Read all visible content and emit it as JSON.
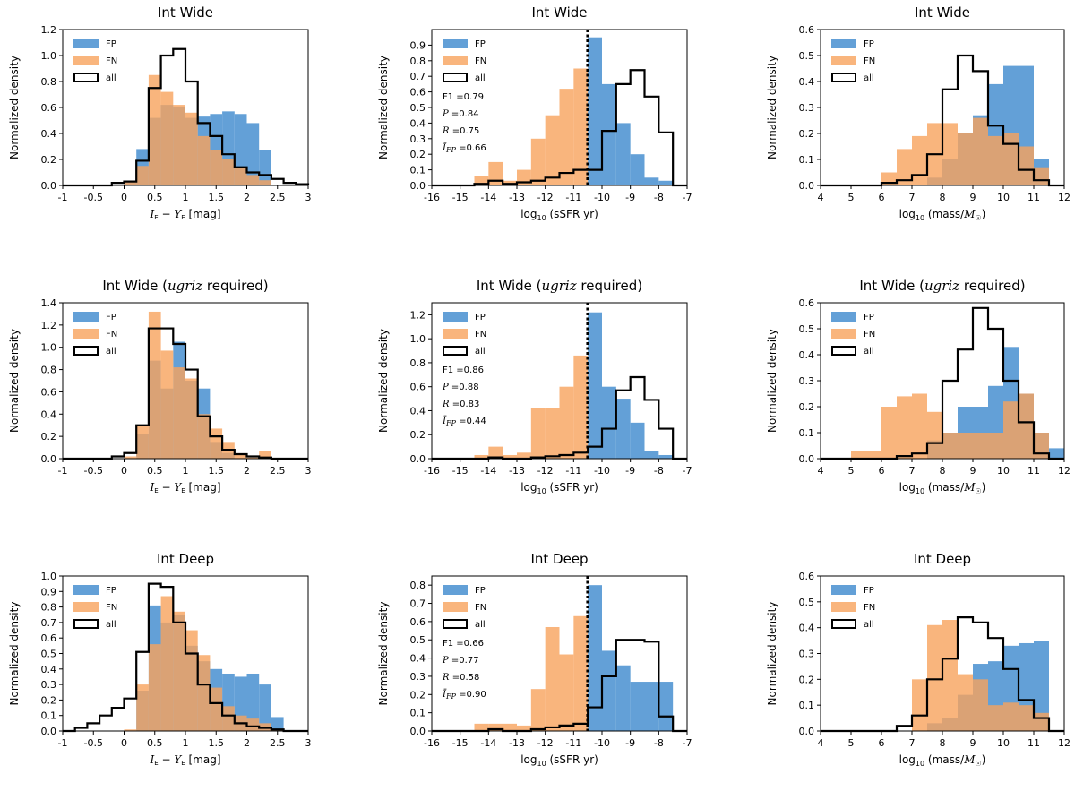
{
  "colors": {
    "FP": "#5b9bd5",
    "FN": "#f7a35c",
    "all": "#000000"
  },
  "legend": [
    "FP",
    "FN",
    "all"
  ],
  "ylabel": "Normalized density",
  "chart_data": [
    {
      "type": "histogram",
      "title": "Int Wide",
      "xlabel": "I_E − Y_E [mag]",
      "xlim": [
        -1,
        3
      ],
      "ylim": [
        0,
        1.2
      ],
      "xticks": [
        "-1",
        "-0.5",
        "0",
        "0.5",
        "1",
        "1.5",
        "2",
        "2.5",
        "3"
      ],
      "yticks": [
        "0.0",
        "0.2",
        "0.4",
        "0.6",
        "0.8",
        "1.0",
        "1.2"
      ],
      "bins": [
        -1.0,
        -0.8,
        -0.6,
        -0.4,
        -0.2,
        0.0,
        0.2,
        0.4,
        0.6,
        0.8,
        1.0,
        1.2,
        1.4,
        1.6,
        1.8,
        2.0,
        2.2,
        2.4,
        2.6,
        2.8,
        3.0
      ],
      "series": [
        {
          "name": "FP",
          "values": [
            0,
            0,
            0,
            0,
            0,
            0.02,
            0.28,
            0.52,
            0.62,
            0.6,
            0.52,
            0.53,
            0.55,
            0.57,
            0.55,
            0.48,
            0.27,
            0,
            0,
            0
          ]
        },
        {
          "name": "FN",
          "values": [
            0,
            0,
            0,
            0,
            0,
            0.03,
            0.15,
            0.85,
            0.72,
            0.62,
            0.56,
            0.38,
            0.27,
            0.2,
            0.14,
            0.08,
            0.04,
            0,
            0,
            0
          ]
        },
        {
          "name": "all",
          "values": [
            0,
            0,
            0,
            0,
            0.02,
            0.03,
            0.19,
            0.75,
            1.0,
            1.05,
            0.8,
            0.48,
            0.38,
            0.24,
            0.14,
            0.1,
            0.08,
            0.05,
            0.02,
            0.01
          ]
        }
      ]
    },
    {
      "type": "histogram",
      "title": "Int Wide",
      "xlabel": "log10 (sSFR yr)",
      "xlim": [
        -16,
        -7
      ],
      "ylim": [
        0,
        1.0
      ],
      "xticks": [
        "-16",
        "-15",
        "-14",
        "-13",
        "-12",
        "-11",
        "-10",
        "-9",
        "-8",
        "-7"
      ],
      "yticks": [
        "0.0",
        "0.1",
        "0.2",
        "0.3",
        "0.4",
        "0.5",
        "0.6",
        "0.7",
        "0.8",
        "0.9"
      ],
      "bins": [
        -16.0,
        -15.5,
        -15.0,
        -14.5,
        -14.0,
        -13.5,
        -13.0,
        -12.5,
        -12.0,
        -11.5,
        -11.0,
        -10.5,
        -10.0,
        -9.5,
        -9.0,
        -8.5,
        -8.0,
        -7.5,
        -7.0
      ],
      "threshold": -10.5,
      "annotations": [
        "F1 = 0.79",
        "P = 0.84",
        "R = 0.75",
        "Ī_FP = 0.66"
      ],
      "series": [
        {
          "name": "FP",
          "values": [
            0,
            0,
            0,
            0,
            0,
            0,
            0,
            0,
            0,
            0,
            0,
            0.95,
            0.65,
            0.4,
            0.2,
            0.05,
            0.03,
            0,
            0
          ]
        },
        {
          "name": "FN",
          "values": [
            0,
            0,
            0,
            0.06,
            0.15,
            0.03,
            0.1,
            0.3,
            0.45,
            0.62,
            0.75,
            0,
            0,
            0,
            0,
            0,
            0,
            0,
            0
          ]
        },
        {
          "name": "all",
          "values": [
            0,
            0,
            0,
            0.01,
            0.03,
            0.01,
            0.02,
            0.03,
            0.05,
            0.08,
            0.1,
            0.1,
            0.35,
            0.65,
            0.74,
            0.57,
            0.34,
            0,
            0
          ]
        }
      ]
    },
    {
      "type": "histogram",
      "title": "Int Wide",
      "xlabel": "log10 (mass/M☉)",
      "xlim": [
        4,
        12
      ],
      "ylim": [
        0,
        0.6
      ],
      "xticks": [
        "4",
        "5",
        "6",
        "7",
        "8",
        "9",
        "10",
        "11",
        "12"
      ],
      "yticks": [
        "0.0",
        "0.1",
        "0.2",
        "0.3",
        "0.4",
        "0.5",
        "0.6"
      ],
      "bins": [
        4.0,
        4.5,
        5.0,
        5.5,
        6.0,
        6.5,
        7.0,
        7.5,
        8.0,
        8.5,
        9.0,
        9.5,
        10.0,
        10.5,
        11.0,
        11.5,
        12.0
      ],
      "series": [
        {
          "name": "FP",
          "values": [
            0,
            0,
            0,
            0,
            0,
            0,
            0,
            0.03,
            0.1,
            0.2,
            0.27,
            0.39,
            0.46,
            0.46,
            0.1,
            0
          ]
        },
        {
          "name": "FN",
          "values": [
            0,
            0,
            0,
            0,
            0.05,
            0.14,
            0.19,
            0.24,
            0.24,
            0.2,
            0.26,
            0.19,
            0.2,
            0.15,
            0.07,
            0
          ]
        },
        {
          "name": "all",
          "values": [
            0,
            0,
            0,
            0,
            0.01,
            0.02,
            0.04,
            0.12,
            0.37,
            0.5,
            0.44,
            0.23,
            0.16,
            0.06,
            0.02,
            0
          ]
        }
      ]
    },
    {
      "type": "histogram",
      "title": "Int Wide (ugriz required)",
      "title_main": "Int Wide (",
      "title_math": "ugriz",
      "title_tail": " required)",
      "xlabel": "I_E − Y_E [mag]",
      "xlim": [
        -1,
        3
      ],
      "ylim": [
        0,
        1.4
      ],
      "xticks": [
        "-1",
        "-0.5",
        "0",
        "0.5",
        "1",
        "1.5",
        "2",
        "2.5",
        "3"
      ],
      "yticks": [
        "0.0",
        "0.2",
        "0.4",
        "0.6",
        "0.8",
        "1.0",
        "1.2",
        "1.4"
      ],
      "bins": [
        -1.0,
        -0.8,
        -0.6,
        -0.4,
        -0.2,
        0.0,
        0.2,
        0.4,
        0.6,
        0.8,
        1.0,
        1.2,
        1.4,
        1.6,
        1.8,
        2.0,
        2.2,
        2.4,
        2.6,
        2.8,
        3.0
      ],
      "series": [
        {
          "name": "FP",
          "values": [
            0,
            0,
            0,
            0,
            0,
            0,
            0.22,
            0.88,
            0.63,
            1.05,
            0.7,
            0.63,
            0.15,
            0.05,
            0,
            0,
            0,
            0,
            0,
            0
          ]
        },
        {
          "name": "FN",
          "values": [
            0,
            0,
            0,
            0,
            0,
            0.02,
            0.3,
            1.32,
            0.97,
            0.82,
            0.72,
            0.4,
            0.27,
            0.15,
            0.04,
            0.01,
            0.07,
            0,
            0,
            0
          ]
        },
        {
          "name": "all",
          "values": [
            0,
            0,
            0,
            0,
            0.02,
            0.05,
            0.3,
            1.17,
            1.17,
            1.03,
            0.8,
            0.38,
            0.2,
            0.08,
            0.04,
            0.02,
            0.01,
            0,
            0,
            0
          ]
        }
      ]
    },
    {
      "type": "histogram",
      "title": "Int Wide (ugriz required)",
      "title_main": "Int Wide (",
      "title_math": "ugriz",
      "title_tail": " required)",
      "xlabel": "log10 (sSFR yr)",
      "xlim": [
        -16,
        -7
      ],
      "ylim": [
        0,
        1.3
      ],
      "xticks": [
        "-16",
        "-15",
        "-14",
        "-13",
        "-12",
        "-11",
        "-10",
        "-9",
        "-8",
        "-7"
      ],
      "yticks": [
        "0.0",
        "0.2",
        "0.4",
        "0.6",
        "0.8",
        "1.0",
        "1.2"
      ],
      "bins": [
        -16.0,
        -15.5,
        -15.0,
        -14.5,
        -14.0,
        -13.5,
        -13.0,
        -12.5,
        -12.0,
        -11.5,
        -11.0,
        -10.5,
        -10.0,
        -9.5,
        -9.0,
        -8.5,
        -8.0,
        -7.5,
        -7.0
      ],
      "threshold": -10.5,
      "annotations": [
        "F1 = 0.86",
        "P = 0.88",
        "R = 0.83",
        "Ī_FP = 0.44"
      ],
      "series": [
        {
          "name": "FP",
          "values": [
            0,
            0,
            0,
            0,
            0,
            0,
            0,
            0,
            0,
            0,
            0,
            1.22,
            0.6,
            0.5,
            0.3,
            0.06,
            0.03,
            0,
            0
          ]
        },
        {
          "name": "FN",
          "values": [
            0,
            0,
            0,
            0.03,
            0.1,
            0.03,
            0.05,
            0.42,
            0.42,
            0.6,
            0.86,
            0,
            0,
            0,
            0,
            0,
            0,
            0,
            0
          ]
        },
        {
          "name": "all",
          "values": [
            0,
            0,
            0,
            0,
            0.01,
            0,
            0,
            0.01,
            0.02,
            0.03,
            0.05,
            0.1,
            0.25,
            0.57,
            0.68,
            0.49,
            0.25,
            0,
            0
          ]
        }
      ]
    },
    {
      "type": "histogram",
      "title": "Int Wide (ugriz required)",
      "title_main": "Int Wide (",
      "title_math": "ugriz",
      "title_tail": " required)",
      "xlabel": "log10 (mass/M☉)",
      "xlim": [
        4,
        12
      ],
      "ylim": [
        0,
        0.6
      ],
      "xticks": [
        "4",
        "5",
        "6",
        "7",
        "8",
        "9",
        "10",
        "11",
        "12"
      ],
      "yticks": [
        "0.0",
        "0.1",
        "0.2",
        "0.3",
        "0.4",
        "0.5",
        "0.6"
      ],
      "bins": [
        4.0,
        4.5,
        5.0,
        5.5,
        6.0,
        6.5,
        7.0,
        7.5,
        8.0,
        8.5,
        9.0,
        9.5,
        10.0,
        10.5,
        11.0,
        11.5,
        12.0
      ],
      "series": [
        {
          "name": "FP",
          "values": [
            0,
            0,
            0,
            0,
            0,
            0,
            0,
            0.07,
            0.1,
            0.2,
            0.2,
            0.28,
            0.43,
            0.25,
            0.1,
            0.04
          ]
        },
        {
          "name": "FN",
          "values": [
            0,
            0,
            0.03,
            0.03,
            0.2,
            0.24,
            0.25,
            0.18,
            0.1,
            0.1,
            0.1,
            0.1,
            0.22,
            0.25,
            0.1,
            0
          ]
        },
        {
          "name": "all",
          "values": [
            0,
            0,
            0,
            0,
            0,
            0.01,
            0.02,
            0.06,
            0.3,
            0.42,
            0.58,
            0.5,
            0.3,
            0.14,
            0.02,
            0
          ]
        }
      ]
    },
    {
      "type": "histogram",
      "title": "Int Deep",
      "xlabel": "I_E − Y_E [mag]",
      "xlim": [
        -1,
        3
      ],
      "ylim": [
        0,
        1.0
      ],
      "xticks": [
        "-1",
        "-0.5",
        "0",
        "0.5",
        "1",
        "1.5",
        "2",
        "2.5",
        "3"
      ],
      "yticks": [
        "0.0",
        "0.1",
        "0.2",
        "0.3",
        "0.4",
        "0.5",
        "0.6",
        "0.7",
        "0.8",
        "0.9",
        "1.0"
      ],
      "bins": [
        -1.0,
        -0.8,
        -0.6,
        -0.4,
        -0.2,
        0.0,
        0.2,
        0.4,
        0.6,
        0.8,
        1.0,
        1.2,
        1.4,
        1.6,
        1.8,
        2.0,
        2.2,
        2.4,
        2.6,
        2.8,
        3.0
      ],
      "series": [
        {
          "name": "FP",
          "values": [
            0,
            0,
            0,
            0,
            0,
            0,
            0.26,
            0.81,
            0.7,
            0.75,
            0.55,
            0.45,
            0.4,
            0.37,
            0.35,
            0.37,
            0.3,
            0.09,
            0,
            0
          ]
        },
        {
          "name": "FN",
          "values": [
            0,
            0,
            0,
            0,
            0,
            0.01,
            0.3,
            0.56,
            0.87,
            0.77,
            0.65,
            0.49,
            0.28,
            0.16,
            0.1,
            0.08,
            0.05,
            0.01,
            0,
            0
          ]
        },
        {
          "name": "all",
          "values": [
            0,
            0.02,
            0.05,
            0.1,
            0.15,
            0.21,
            0.51,
            0.95,
            0.93,
            0.7,
            0.5,
            0.3,
            0.18,
            0.1,
            0.05,
            0.03,
            0.02,
            0.01,
            0,
            0
          ]
        }
      ]
    },
    {
      "type": "histogram",
      "title": "Int Deep",
      "xlabel": "log10 (sSFR yr)",
      "xlim": [
        -16,
        -7
      ],
      "ylim": [
        0,
        0.85
      ],
      "xticks": [
        "-16",
        "-15",
        "-14",
        "-13",
        "-12",
        "-11",
        "-10",
        "-9",
        "-8",
        "-7"
      ],
      "yticks": [
        "0.0",
        "0.1",
        "0.2",
        "0.3",
        "0.4",
        "0.5",
        "0.6",
        "0.7",
        "0.8"
      ],
      "bins": [
        -16.0,
        -15.5,
        -15.0,
        -14.5,
        -14.0,
        -13.5,
        -13.0,
        -12.5,
        -12.0,
        -11.5,
        -11.0,
        -10.5,
        -10.0,
        -9.5,
        -9.0,
        -8.5,
        -8.0,
        -7.5,
        -7.0
      ],
      "threshold": -10.5,
      "annotations": [
        "F1 = 0.66",
        "P = 0.77",
        "R = 0.58",
        "Ī_FP = 0.90"
      ],
      "series": [
        {
          "name": "FP",
          "values": [
            0,
            0,
            0,
            0,
            0,
            0,
            0,
            0,
            0,
            0,
            0,
            0.8,
            0.44,
            0.36,
            0.27,
            0.27,
            0.27,
            0,
            0
          ]
        },
        {
          "name": "FN",
          "values": [
            0,
            0,
            0,
            0.04,
            0.04,
            0.04,
            0.03,
            0.23,
            0.57,
            0.42,
            0.63,
            0,
            0,
            0,
            0,
            0,
            0,
            0,
            0
          ]
        },
        {
          "name": "all",
          "values": [
            0,
            0,
            0,
            0,
            0.01,
            0,
            0,
            0.01,
            0.02,
            0.03,
            0.04,
            0.13,
            0.3,
            0.5,
            0.5,
            0.49,
            0.08,
            0,
            0
          ]
        }
      ]
    },
    {
      "type": "histogram",
      "title": "Int Deep",
      "xlabel": "log10 (mass/M☉)",
      "xlim": [
        4,
        12
      ],
      "ylim": [
        0,
        0.6
      ],
      "xticks": [
        "4",
        "5",
        "6",
        "7",
        "8",
        "9",
        "10",
        "11",
        "12"
      ],
      "yticks": [
        "0.0",
        "0.1",
        "0.2",
        "0.3",
        "0.4",
        "0.5",
        "0.6"
      ],
      "bins": [
        4.0,
        4.5,
        5.0,
        5.5,
        6.0,
        6.5,
        7.0,
        7.5,
        8.0,
        8.5,
        9.0,
        9.5,
        10.0,
        10.5,
        11.0,
        11.5,
        12.0
      ],
      "series": [
        {
          "name": "FP",
          "values": [
            0,
            0,
            0,
            0,
            0,
            0,
            0,
            0.03,
            0.05,
            0.14,
            0.26,
            0.27,
            0.33,
            0.34,
            0.35,
            0
          ]
        },
        {
          "name": "FN",
          "values": [
            0,
            0,
            0,
            0,
            0,
            0,
            0.2,
            0.41,
            0.43,
            0.22,
            0.2,
            0.1,
            0.11,
            0.1,
            0.07,
            0
          ]
        },
        {
          "name": "all",
          "values": [
            0,
            0,
            0,
            0,
            0,
            0.02,
            0.06,
            0.2,
            0.28,
            0.44,
            0.42,
            0.36,
            0.24,
            0.12,
            0.05,
            0
          ]
        }
      ]
    }
  ]
}
